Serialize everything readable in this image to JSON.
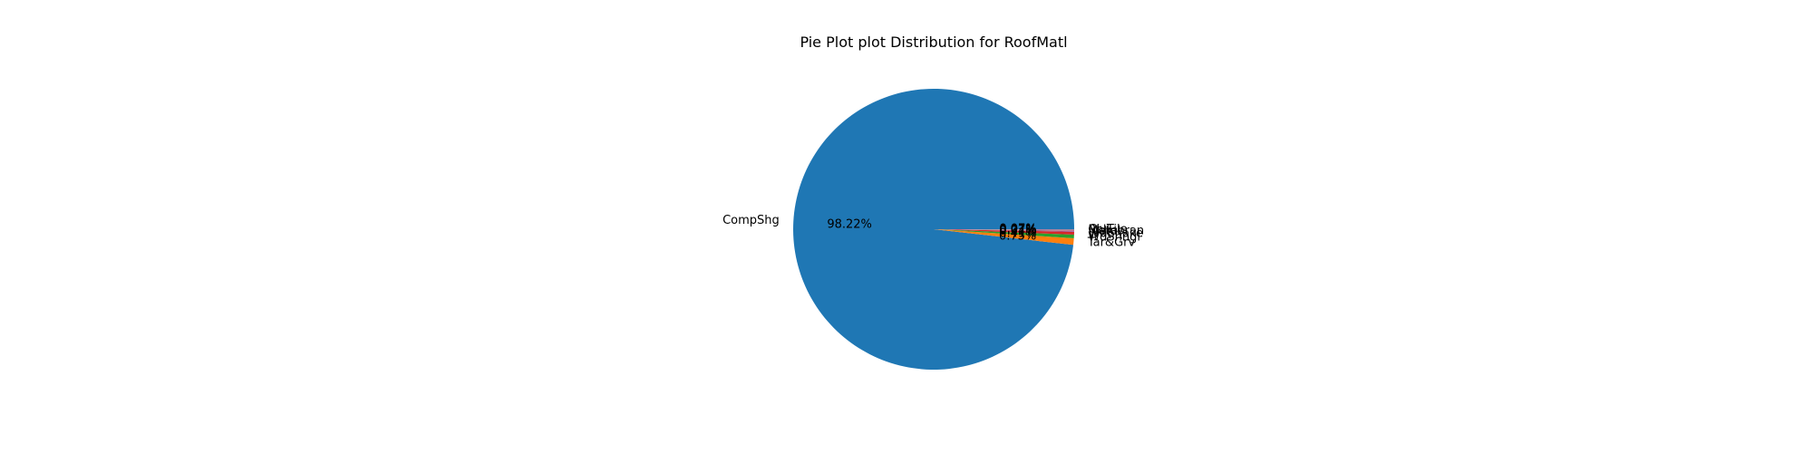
{
  "chart_data": {
    "type": "pie",
    "title": "Pie Plot plot Distribution for RoofMatl",
    "slices": [
      {
        "label": "CompShg",
        "value": 98.22,
        "pct_text": "98.22%",
        "color": "#1f77b4"
      },
      {
        "label": "Tar&Grv",
        "value": 0.75,
        "pct_text": "0.75%",
        "color": "#ff7f0e"
      },
      {
        "label": "WdShngl",
        "value": 0.41,
        "pct_text": "0.41%",
        "color": "#2ca02c"
      },
      {
        "label": "WdShake",
        "value": 0.34,
        "pct_text": "0.34%",
        "color": "#d62728"
      },
      {
        "label": "Metal",
        "value": 0.07,
        "pct_text": "0.07%",
        "color": "#9467bd"
      },
      {
        "label": "Membran",
        "value": 0.07,
        "pct_text": "0.07%",
        "color": "#8c564b"
      },
      {
        "label": "Roll",
        "value": 0.07,
        "pct_text": "0.07%",
        "color": "#e377c2"
      },
      {
        "label": "ClyTile",
        "value": 0.07,
        "pct_text": "0.07%",
        "color": "#7f7f7f"
      }
    ],
    "start_angle": 0,
    "direction": "counterclockwise"
  }
}
